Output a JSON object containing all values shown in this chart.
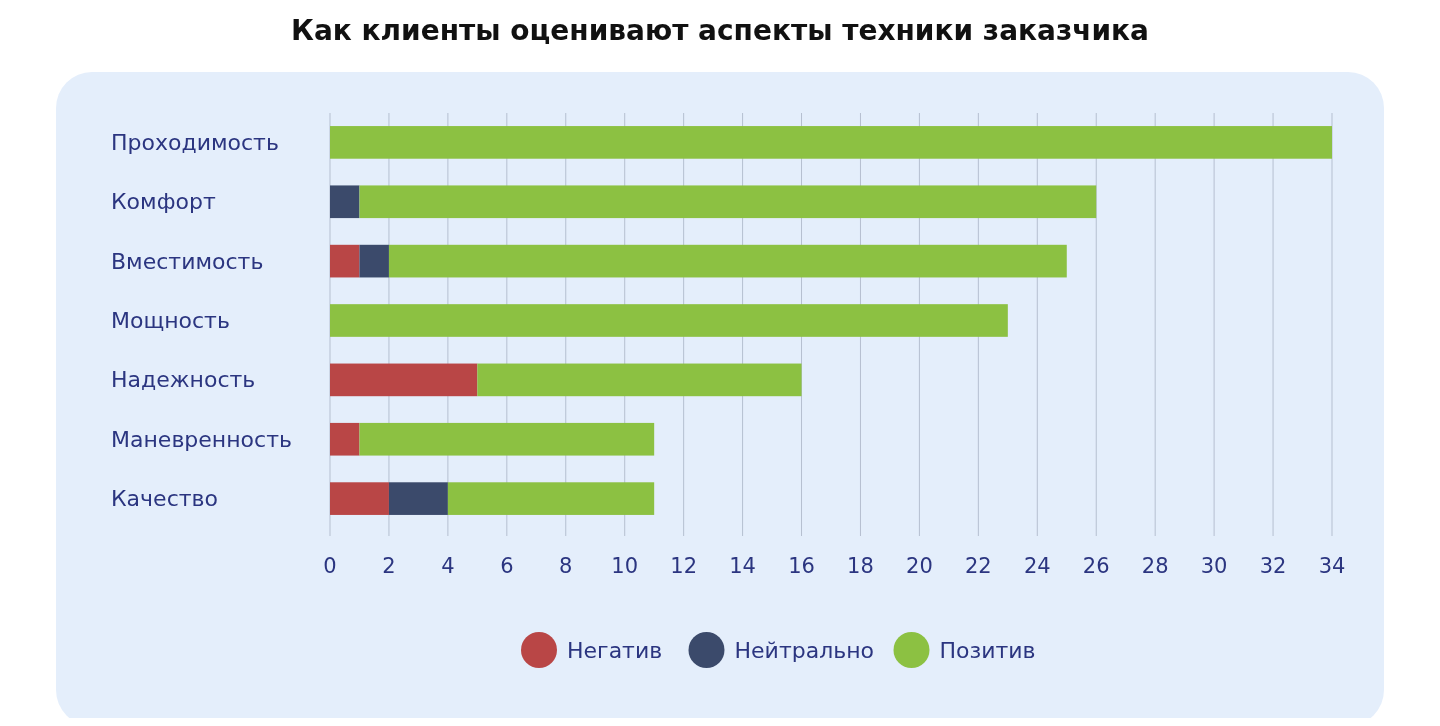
{
  "chart_data": {
    "type": "bar",
    "title": "Как клиенты оценивают аспекты техники заказчика",
    "orientation": "horizontal",
    "stacked": true,
    "categories": [
      "Проходимость",
      "Комфорт",
      "Вместимость",
      "Мощность",
      "Надежность",
      "Маневренность",
      "Качество"
    ],
    "series": [
      {
        "name": "Негатив",
        "color": "#b94646",
        "values": [
          0,
          0,
          1,
          0,
          5,
          1,
          2
        ]
      },
      {
        "name": "Нейтрально",
        "color": "#3b4a6b",
        "values": [
          0,
          1,
          1,
          0,
          0,
          0,
          2
        ]
      },
      {
        "name": "Позитив",
        "color": "#8cc142",
        "values": [
          34,
          25,
          23,
          23,
          11,
          10,
          7
        ]
      }
    ],
    "xlim": [
      0,
      34
    ],
    "xticks": [
      0,
      2,
      4,
      6,
      8,
      10,
      12,
      14,
      16,
      18,
      20,
      22,
      24,
      26,
      28,
      30,
      32,
      34
    ],
    "grid": "x",
    "legend": "bottom"
  }
}
